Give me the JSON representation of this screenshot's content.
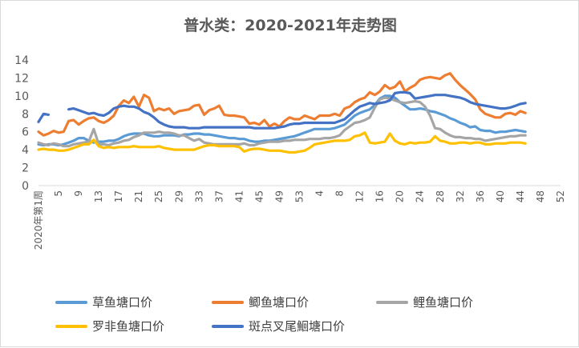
{
  "chart_data": {
    "type": "line",
    "title": "普水类：2020-2021年走势图",
    "ylim": [
      0,
      14
    ],
    "y_ticks": [
      0,
      2,
      4,
      6,
      8,
      10,
      12,
      14
    ],
    "grid": false,
    "legend_position": "bottom",
    "first_x_label": "2020年第1周",
    "x_tick_labels": [
      "5",
      "9",
      "13",
      "17",
      "21",
      "25",
      "29",
      "33",
      "37",
      "41",
      "45",
      "49",
      "53",
      "4",
      "8",
      "12",
      "16",
      "20",
      "24",
      "28",
      "32",
      "36",
      "40",
      "44",
      "48",
      "52"
    ],
    "series": [
      {
        "name": "草鱼塘口价",
        "color": "#5b9bd5",
        "values": [
          4.6,
          4.5,
          4.6,
          4.6,
          4.5,
          4.6,
          4.8,
          5.0,
          5.3,
          5.3,
          5.0,
          4.8,
          4.9,
          4.9,
          5.0,
          5.0,
          5.2,
          5.5,
          5.7,
          5.8,
          5.8,
          5.8,
          5.6,
          5.5,
          5.5,
          5.6,
          5.6,
          5.6,
          5.5,
          5.7,
          5.7,
          5.8,
          5.8,
          5.7,
          5.7,
          5.6,
          5.5,
          5.4,
          5.3,
          5.3,
          5.2,
          5.2,
          5.0,
          4.9,
          4.9,
          5.0,
          5.0,
          5.1,
          5.2,
          5.3,
          5.4,
          5.5,
          5.7,
          5.9,
          6.1,
          6.3,
          6.3,
          6.3,
          6.3,
          6.4,
          6.6,
          6.8,
          7.3,
          7.8,
          8.1,
          8.3,
          8.5,
          9.0,
          9.7,
          10.0,
          10.0,
          9.8,
          9.3,
          8.9,
          8.5,
          8.5,
          8.6,
          8.5,
          8.3,
          8.2,
          8.0,
          7.8,
          7.5,
          7.3,
          7.0,
          6.8,
          6.5,
          6.6,
          6.2,
          6.1,
          6.1,
          5.9,
          6.0,
          6.0,
          6.1,
          6.2,
          6.1,
          6.0
        ]
      },
      {
        "name": "鲫鱼塘口价",
        "color": "#ed7d31",
        "values": [
          6.0,
          5.6,
          5.8,
          6.1,
          5.9,
          6.0,
          7.2,
          7.3,
          6.8,
          7.2,
          7.5,
          7.6,
          7.2,
          7.0,
          7.3,
          7.8,
          8.9,
          9.5,
          9.2,
          9.9,
          8.8,
          10.1,
          9.8,
          8.3,
          8.6,
          8.4,
          8.6,
          8.0,
          8.3,
          8.4,
          8.5,
          8.9,
          9.0,
          7.9,
          8.4,
          8.6,
          8.9,
          7.9,
          7.8,
          7.8,
          7.7,
          7.6,
          6.9,
          7.0,
          6.8,
          7.3,
          6.6,
          6.9,
          6.6,
          7.2,
          7.6,
          7.4,
          7.4,
          7.8,
          7.6,
          7.4,
          7.8,
          7.8,
          7.8,
          8.0,
          7.8,
          8.6,
          8.8,
          9.3,
          9.6,
          9.8,
          10.4,
          10.1,
          10.5,
          11.2,
          10.8,
          11.0,
          11.6,
          10.5,
          10.9,
          11.2,
          11.8,
          12.0,
          12.1,
          12.0,
          11.9,
          12.3,
          12.5,
          11.8,
          11.2,
          10.7,
          10.2,
          9.6,
          8.5,
          8.0,
          7.8,
          7.6,
          7.6,
          8.0,
          8.1,
          7.9,
          8.3,
          8.1
        ]
      },
      {
        "name": "鲤鱼塘口价",
        "color": "#a5a5a5",
        "values": [
          4.8,
          4.6,
          4.5,
          4.7,
          4.6,
          4.4,
          4.4,
          4.6,
          4.7,
          4.8,
          4.9,
          6.3,
          4.6,
          4.6,
          4.5,
          4.7,
          4.8,
          5.0,
          5.1,
          5.4,
          5.6,
          5.9,
          5.9,
          5.9,
          6.0,
          5.9,
          5.9,
          5.8,
          5.6,
          5.6,
          5.3,
          5.0,
          5.2,
          4.8,
          4.7,
          4.6,
          4.6,
          4.6,
          4.6,
          4.6,
          4.6,
          4.7,
          4.5,
          4.5,
          4.7,
          4.8,
          4.9,
          4.9,
          4.9,
          5.0,
          5.0,
          5.1,
          5.1,
          5.1,
          5.2,
          5.2,
          5.2,
          5.3,
          5.3,
          5.4,
          5.6,
          6.2,
          6.6,
          7.0,
          7.1,
          7.3,
          7.6,
          8.7,
          9.6,
          9.8,
          9.7,
          9.5,
          9.3,
          9.2,
          9.3,
          9.4,
          9.3,
          8.8,
          7.8,
          6.4,
          6.3,
          5.9,
          5.6,
          5.4,
          5.4,
          5.3,
          5.3,
          5.2,
          5.2,
          5.0,
          5.1,
          5.2,
          5.3,
          5.4,
          5.5,
          5.5,
          5.6,
          5.6
        ]
      },
      {
        "name": "罗非鱼塘口价",
        "color": "#ffc000",
        "values": [
          4.0,
          4.1,
          4.0,
          4.0,
          3.9,
          3.9,
          4.0,
          4.2,
          4.4,
          4.6,
          4.6,
          5.1,
          4.4,
          4.2,
          4.3,
          4.2,
          4.3,
          4.3,
          4.3,
          4.4,
          4.3,
          4.3,
          4.3,
          4.3,
          4.4,
          4.2,
          4.1,
          4.0,
          4.0,
          4.0,
          4.0,
          4.0,
          4.2,
          4.4,
          4.5,
          4.5,
          4.4,
          4.4,
          4.4,
          4.4,
          4.3,
          3.8,
          4.0,
          4.1,
          4.1,
          4.0,
          3.9,
          3.9,
          3.9,
          3.8,
          3.7,
          3.7,
          3.8,
          3.9,
          4.2,
          4.6,
          4.7,
          4.8,
          4.9,
          5.0,
          5.0,
          5.0,
          5.1,
          5.5,
          5.6,
          5.9,
          4.8,
          4.7,
          4.8,
          4.9,
          5.8,
          5.0,
          4.7,
          4.6,
          4.8,
          4.7,
          4.8,
          4.8,
          4.9,
          5.5,
          5.0,
          4.9,
          4.7,
          4.7,
          4.8,
          4.8,
          4.7,
          4.8,
          4.8,
          4.6,
          4.6,
          4.7,
          4.7,
          4.7,
          4.8,
          4.8,
          4.8,
          4.7
        ]
      },
      {
        "name": "斑点叉尾鮰塘口价",
        "color": "#4472c4",
        "values": [
          7.1,
          8.0,
          7.9,
          null,
          null,
          null,
          8.5,
          8.6,
          8.4,
          8.2,
          8.0,
          8.1,
          7.9,
          7.8,
          8.1,
          8.6,
          8.8,
          8.9,
          8.8,
          8.8,
          8.6,
          8.2,
          8.0,
          7.6,
          7.1,
          6.8,
          6.6,
          6.5,
          6.5,
          6.5,
          6.4,
          6.4,
          6.4,
          6.5,
          6.5,
          6.5,
          6.5,
          6.5,
          6.5,
          6.5,
          6.5,
          6.5,
          6.5,
          6.4,
          6.4,
          6.4,
          6.4,
          6.4,
          6.5,
          6.6,
          6.8,
          6.9,
          6.9,
          7.0,
          7.0,
          7.0,
          7.0,
          7.0,
          7.0,
          7.0,
          7.2,
          7.4,
          7.9,
          8.4,
          8.8,
          9.0,
          9.2,
          9.1,
          9.2,
          9.3,
          9.5,
          10.3,
          10.4,
          10.4,
          10.3,
          9.7,
          9.8,
          9.9,
          10.0,
          10.1,
          10.1,
          10.1,
          10.0,
          9.9,
          9.8,
          9.6,
          9.3,
          9.1,
          9.0,
          8.9,
          8.8,
          8.7,
          8.6,
          8.6,
          8.7,
          8.9,
          9.1,
          9.2
        ]
      }
    ]
  }
}
